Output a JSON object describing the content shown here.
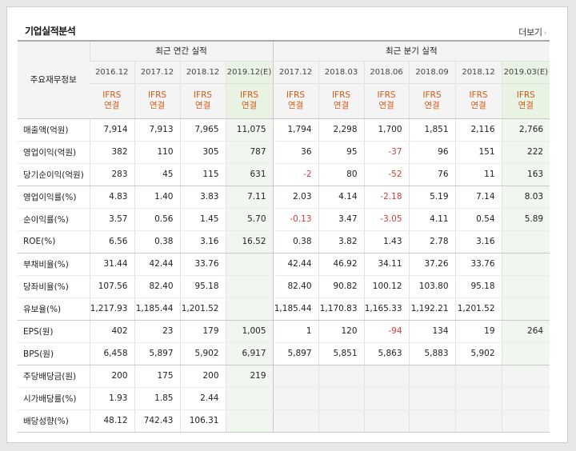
{
  "section_title": "기업실적분석",
  "more_label": "더보기",
  "row_header_label": "주요재무정보",
  "group_annual": "최근 연간 실적",
  "group_quarter": "최근 분기 실적",
  "periods": [
    "2016.12",
    "2017.12",
    "2018.12",
    "2019.12(E)",
    "2017.12",
    "2018.03",
    "2018.06",
    "2018.09",
    "2018.12",
    "2019.03(E)"
  ],
  "ifrs_top": "IFRS",
  "ifrs_bottom": "연결",
  "rows": [
    {
      "label": "매출액(억원)",
      "values": [
        "7,914",
        "7,913",
        "7,965",
        "11,075",
        "1,794",
        "2,298",
        "1,700",
        "1,851",
        "2,116",
        "2,766"
      ]
    },
    {
      "label": "영업이익(억원)",
      "values": [
        "382",
        "110",
        "305",
        "787",
        "36",
        "95",
        "-37",
        "96",
        "151",
        "222"
      ]
    },
    {
      "label": "당기순이익(억원)",
      "values": [
        "283",
        "45",
        "115",
        "631",
        "-2",
        "80",
        "-52",
        "76",
        "11",
        "163"
      ]
    },
    {
      "label": "영업이익률(%)",
      "values": [
        "4.83",
        "1.40",
        "3.83",
        "7.11",
        "2.03",
        "4.14",
        "-2.18",
        "5.19",
        "7.14",
        "8.03"
      ]
    },
    {
      "label": "순이익률(%)",
      "values": [
        "3.57",
        "0.56",
        "1.45",
        "5.70",
        "-0.13",
        "3.47",
        "-3.05",
        "4.11",
        "0.54",
        "5.89"
      ]
    },
    {
      "label": "ROE(%)",
      "values": [
        "6.56",
        "0.38",
        "3.16",
        "16.52",
        "0.38",
        "3.82",
        "1.43",
        "2.78",
        "3.16",
        ""
      ]
    },
    {
      "label": "부채비율(%)",
      "values": [
        "31.44",
        "42.44",
        "33.76",
        "",
        "42.44",
        "46.92",
        "34.11",
        "37.26",
        "33.76",
        ""
      ]
    },
    {
      "label": "당좌비율(%)",
      "values": [
        "107.56",
        "82.40",
        "95.18",
        "",
        "82.40",
        "90.82",
        "100.12",
        "103.80",
        "95.18",
        ""
      ]
    },
    {
      "label": "유보율(%)",
      "values": [
        "1,217.93",
        "1,185.44",
        "1,201.52",
        "",
        "1,185.44",
        "1,170.83",
        "1,165.33",
        "1,192.21",
        "1,201.52",
        ""
      ]
    },
    {
      "label": "EPS(원)",
      "values": [
        "402",
        "23",
        "179",
        "1,005",
        "1",
        "120",
        "-94",
        "134",
        "19",
        "264"
      ]
    },
    {
      "label": "BPS(원)",
      "values": [
        "6,458",
        "5,897",
        "5,902",
        "6,917",
        "5,897",
        "5,851",
        "5,863",
        "5,883",
        "5,902",
        ""
      ]
    },
    {
      "label": "주당배당금(원)",
      "values": [
        "200",
        "175",
        "200",
        "219",
        "",
        "",
        "",
        "",
        "",
        ""
      ]
    },
    {
      "label": "시가배당률(%)",
      "values": [
        "1.93",
        "1.85",
        "2.44",
        "",
        "",
        "",
        "",
        "",
        "",
        ""
      ]
    },
    {
      "label": "배당성향(%)",
      "values": [
        "48.12",
        "742.43",
        "106.31",
        "",
        "",
        "",
        "",
        "",
        "",
        ""
      ]
    }
  ]
}
